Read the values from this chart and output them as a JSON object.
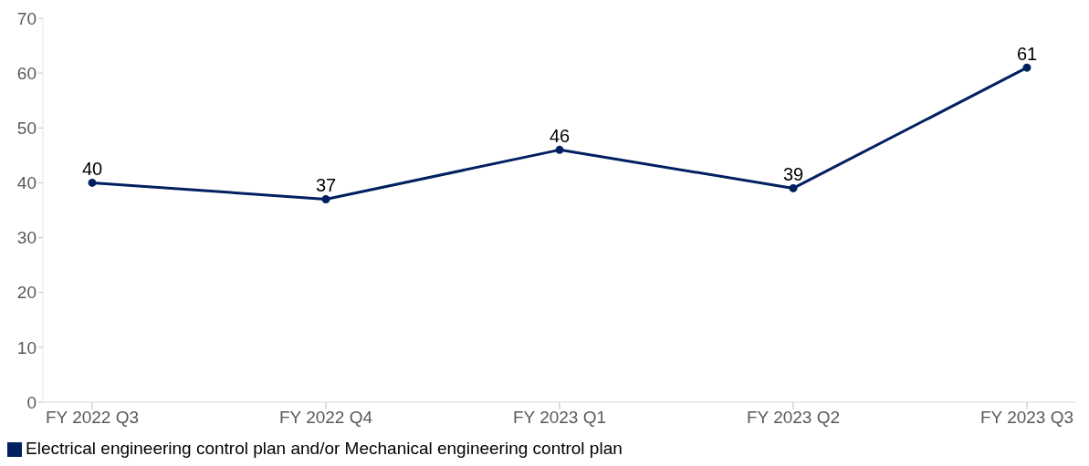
{
  "chart_data": {
    "type": "line",
    "categories": [
      "FY 2022 Q3",
      "FY 2022 Q4",
      "FY 2023 Q1",
      "FY 2023 Q2",
      "FY 2023 Q3"
    ],
    "series": [
      {
        "name": "Electrical engineering control plan and/or Mechanical engineering control plan",
        "color": "#002060",
        "values": [
          40,
          37,
          46,
          39,
          61
        ]
      }
    ],
    "ylim": [
      0,
      70
    ],
    "yticks": [
      0,
      10,
      20,
      30,
      40,
      50,
      60,
      70
    ],
    "grid": false,
    "legend": "bottom left",
    "data_labels": true,
    "marker": "circle",
    "line_style": "solid"
  }
}
